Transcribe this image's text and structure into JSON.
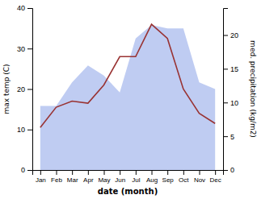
{
  "chart_data": {
    "type": "line",
    "categories": [
      "Jan",
      "Feb",
      "Mar",
      "Apr",
      "May",
      "Jun",
      "Jul",
      "Aug",
      "Sep",
      "Oct",
      "Nov",
      "Dec"
    ],
    "xlabel": "date (month)",
    "ylabel": "max temp (C)",
    "y2label": "med. precipitation (kg/m2)",
    "ylim": [
      0,
      40
    ],
    "yticks": [
      0,
      10,
      20,
      30,
      40
    ],
    "y2lim": [
      0,
      24
    ],
    "y2ticks": [
      0,
      5,
      10,
      15,
      20
    ],
    "series": [
      {
        "type": "area",
        "axis": "y2",
        "color": "#aabbee",
        "values": [
          9.5,
          9.5,
          13.0,
          15.5,
          14.0,
          11.5,
          19.5,
          21.5,
          21.0,
          21.0,
          13.0,
          12.0
        ]
      },
      {
        "type": "line",
        "color": "#993333",
        "values": [
          10.5,
          15.5,
          17.0,
          16.5,
          21.0,
          28.0,
          28.0,
          36.0,
          32.5,
          20.0,
          14.0,
          11.5
        ]
      }
    ]
  }
}
